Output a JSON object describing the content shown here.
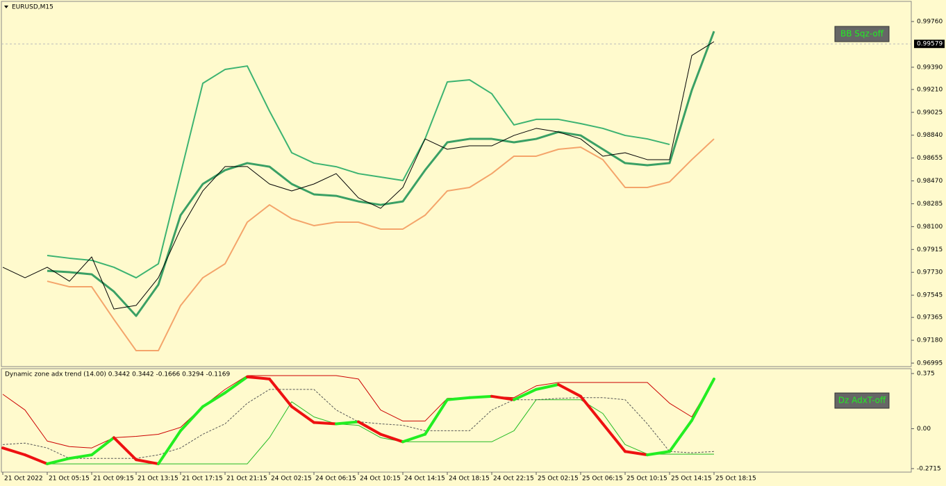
{
  "chart_data": [
    {
      "type": "line",
      "title": "EURUSD,M15",
      "annotation": "BB Sqz-off",
      "current_price": 0.99579,
      "ylim": [
        0.96967,
        0.99923
      ],
      "yticks": [
        {
          "value": 0.9976,
          "label": "0.99760"
        },
        {
          "value": 0.9939,
          "label": "0.99390"
        },
        {
          "value": 0.9921,
          "label": "0.99210"
        },
        0.99025,
        {
          "value": 0.9884,
          "label": "0.98840"
        },
        0.98655,
        {
          "value": 0.9847,
          "label": "0.98470"
        },
        0.98285,
        {
          "value": 0.981,
          "label": "0.98100"
        },
        0.97915,
        {
          "value": 0.9773,
          "label": "0.97730"
        },
        0.97545,
        0.97365,
        {
          "value": 0.9718,
          "label": "0.97180"
        },
        0.96995
      ],
      "series": [
        {
          "color": "#3cb371",
          "width": 2,
          "values": [
            null,
            null,
            0.97866,
            0.97844,
            0.97827,
            0.97771,
            0.97686,
            0.97799,
            0.98529,
            0.9926,
            0.99372,
            0.994,
            0.99035,
            0.98698,
            0.98614,
            0.98585,
            0.98529,
            0.98501,
            0.98473,
            0.9881,
            0.99271,
            0.99288,
            0.99176,
            0.98923,
            0.98968,
            0.98968,
            0.98934,
            0.98895,
            0.98838,
            0.9881,
            0.98765,
            null,
            null
          ]
        },
        {
          "color": "#f4a46a",
          "width": 2,
          "values": [
            null,
            null,
            0.97658,
            0.97613,
            0.97613,
            0.97349,
            0.97096,
            0.97096,
            0.97461,
            0.97686,
            0.97799,
            0.98136,
            0.98276,
            0.98164,
            0.98108,
            0.98136,
            0.98136,
            0.9808,
            0.9808,
            0.98192,
            0.98389,
            0.98417,
            0.98529,
            0.9867,
            0.9867,
            0.98726,
            0.98743,
            0.98642,
            0.98417,
            0.98417,
            0.98462,
            0.98642,
            0.9881
          ]
        },
        {
          "color": "#3aa065",
          "width": 3,
          "values": [
            null,
            null,
            0.97742,
            0.97731,
            0.97714,
            0.97574,
            0.97377,
            0.9763,
            0.98192,
            0.98445,
            0.98557,
            0.98614,
            0.98585,
            0.98445,
            0.98361,
            0.98349,
            0.98304,
            0.98276,
            0.98304,
            0.98557,
            0.98782,
            0.9881,
            0.9881,
            0.98782,
            0.9881,
            0.98866,
            0.98838,
            0.98726,
            0.98614,
            0.98597,
            0.98614,
            0.99204,
            0.99681
          ]
        },
        {
          "color": "#000000",
          "width": 1,
          "values": [
            0.97771,
            0.97686,
            0.97771,
            0.97658,
            0.97855,
            0.97433,
            0.97462,
            0.97686,
            0.9808,
            0.98389,
            0.98586,
            0.98586,
            0.98445,
            0.98389,
            0.98445,
            0.98529,
            0.98333,
            0.98248,
            0.98417,
            0.9881,
            0.98726,
            0.98754,
            0.98754,
            0.98838,
            0.98895,
            0.98866,
            0.9881,
            0.9867,
            0.98698,
            0.98642,
            0.98642,
            0.99485,
            0.99597
          ]
        }
      ]
    },
    {
      "type": "line",
      "title": "Dynamic zone adx trend (14.00) 0.3442 0.3442 -0.1666 0.3294 -0.1169",
      "annotation": "Dz AdxT-off",
      "categories": [
        "21 Oct 2022",
        null,
        "21 Oct 05:15",
        null,
        "21 Oct 09:15",
        null,
        "21 Oct 13:15",
        null,
        "21 Oct 17:15",
        null,
        "21 Oct 21:15",
        null,
        "24 Oct 02:15",
        null,
        "24 Oct 06:15",
        null,
        "24 Oct 10:15",
        null,
        "24 Oct 14:15",
        null,
        "24 Oct 18:15",
        null,
        "24 Oct 22:15",
        null,
        "25 Oct 02:15",
        null,
        "25 Oct 06:15",
        null,
        "25 Oct 10:15",
        null,
        "25 Oct 14:15",
        null,
        "25 Oct 18:15"
      ],
      "ylim": [
        -0.2953,
        0.408
      ],
      "yticks": [
        0.375,
        {
          "value": 0,
          "label": "0.00"
        },
        -0.2715
      ],
      "series": [
        {
          "color": "#cc0000",
          "width": 1,
          "values": [
            0.234,
            0.127,
            -0.084,
            -0.122,
            -0.131,
            -0.061,
            -0.052,
            -0.038,
            0.009,
            0.15,
            0.267,
            0.361,
            0.361,
            0.361,
            0.361,
            0.361,
            0.338,
            0.127,
            0.052,
            0.052,
            0.206,
            0.211,
            0.22,
            0.211,
            0.291,
            0.314,
            0.314,
            0.314,
            0.314,
            0.314,
            0.173,
            0.08,
            0.338
          ]
        },
        {
          "color": "#22bb22",
          "width": 1,
          "values": [
            -0.131,
            -0.178,
            -0.239,
            -0.239,
            -0.239,
            -0.239,
            -0.239,
            -0.239,
            -0.239,
            -0.239,
            -0.239,
            -0.239,
            -0.061,
            0.183,
            0.08,
            0.033,
            0.023,
            -0.061,
            -0.089,
            -0.089,
            -0.089,
            -0.089,
            -0.089,
            -0.014,
            0.197,
            0.197,
            0.197,
            0.103,
            -0.108,
            -0.173,
            -0.173,
            -0.173,
            -0.173
          ]
        },
        {
          "color": "#555555",
          "width": 1,
          "dash": true,
          "values": [
            -0.108,
            -0.098,
            -0.131,
            -0.202,
            -0.202,
            -0.202,
            -0.202,
            -0.178,
            -0.131,
            -0.038,
            0.033,
            0.173,
            0.267,
            0.267,
            0.267,
            0.127,
            0.047,
            0.033,
            0.023,
            -0.014,
            -0.014,
            -0.014,
            0.127,
            0.197,
            0.197,
            0.206,
            0.211,
            0.211,
            0.197,
            0.033,
            -0.155,
            -0.164,
            -0.155
          ]
        },
        {
          "width": 4,
          "up_color": "#22ee22",
          "down_color": "#ee1111",
          "values": [
            -0.131,
            -0.178,
            -0.239,
            -0.202,
            -0.178,
            -0.061,
            -0.211,
            -0.239,
            -0.014,
            0.15,
            0.244,
            0.352,
            0.338,
            0.15,
            0.042,
            0.033,
            0.047,
            -0.038,
            -0.089,
            -0.038,
            0.197,
            0.211,
            0.22,
            0.197,
            0.267,
            0.3,
            0.22,
            0.033,
            -0.155,
            -0.178,
            -0.155,
            0.056,
            0.338
          ]
        }
      ]
    }
  ]
}
